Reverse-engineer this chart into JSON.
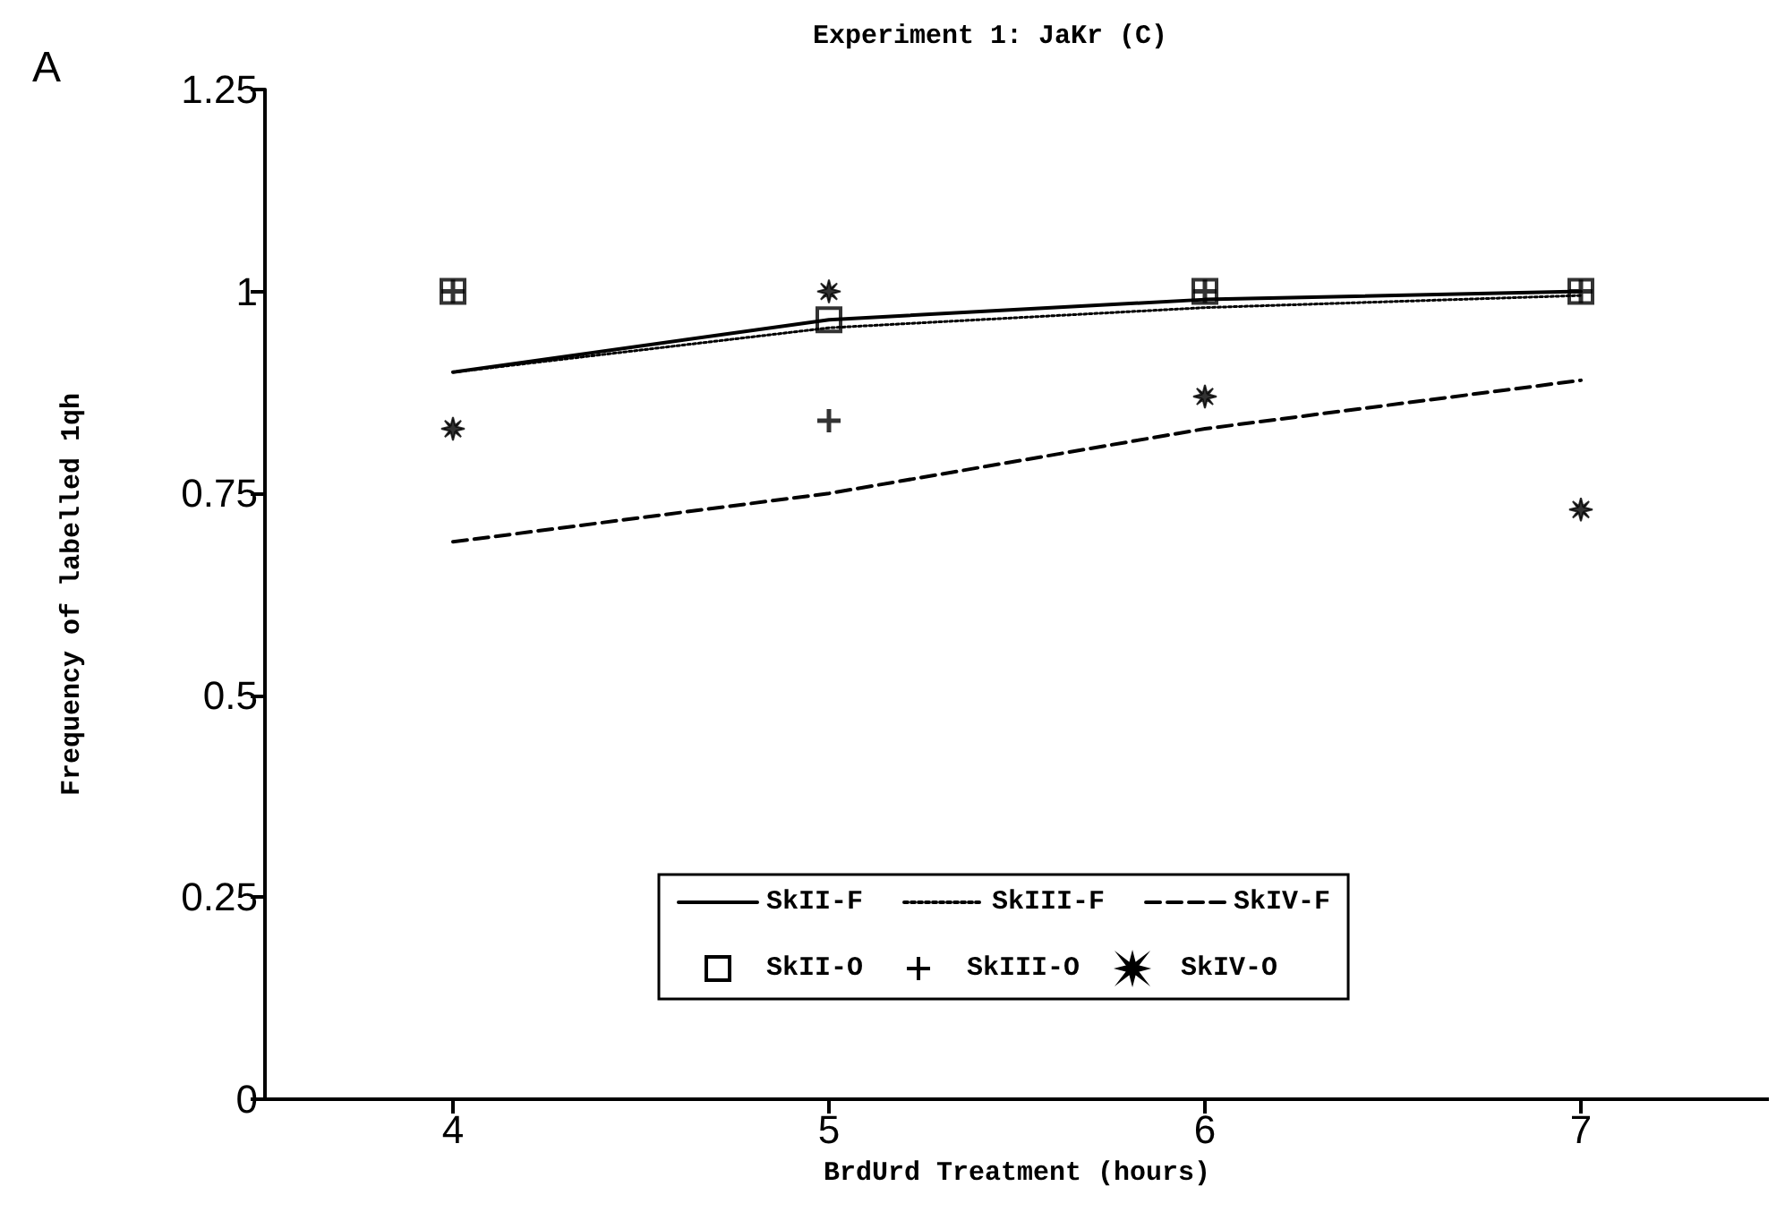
{
  "chart_data": {
    "type": "line",
    "title": "Experiment 1: JaKr (C)",
    "xlabel": "BrdUrd Treatment (hours)",
    "ylabel": "Frequency of labelled 1qh",
    "annotations": [
      "A"
    ],
    "x": [
      4,
      5,
      6,
      7
    ],
    "xlim": [
      3.5,
      7.5
    ],
    "xticks": [
      4,
      5,
      6,
      7
    ],
    "ylim": [
      0,
      1.25
    ],
    "yticks": [
      0,
      0.25,
      0.5,
      0.75,
      1,
      1.25
    ],
    "grid": false,
    "legend": "bottom",
    "series": [
      {
        "name": "SkII-F",
        "color": "#000000",
        "line_style": "solid",
        "marker": "none",
        "values": [
          0.9,
          0.965,
          0.99,
          1.0
        ]
      },
      {
        "name": "SkIII-F",
        "color": "#000000",
        "line_style": "dotted",
        "marker": "none",
        "values": [
          0.9,
          0.955,
          0.98,
          0.995
        ]
      },
      {
        "name": "SkIV-F",
        "color": "#000000",
        "line_style": "dashed",
        "marker": "none",
        "values": [
          0.69,
          0.75,
          0.83,
          0.89
        ]
      },
      {
        "name": "SkII-O",
        "type": "scatter",
        "color": "#000000",
        "marker": "square",
        "values": [
          1.0,
          0.965,
          1.0,
          1.0
        ]
      },
      {
        "name": "SkIII-O",
        "type": "scatter",
        "color": "#000000",
        "marker": "cross",
        "values": [
          1.0,
          0.84,
          1.0,
          1.0
        ]
      },
      {
        "name": "SkIV-O",
        "type": "scatter",
        "color": "#000000",
        "marker": "star",
        "values": [
          0.83,
          1.0,
          0.87,
          0.73
        ]
      }
    ]
  }
}
